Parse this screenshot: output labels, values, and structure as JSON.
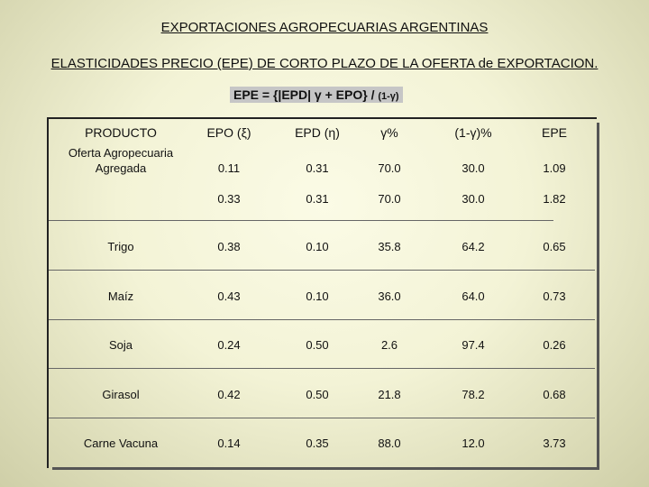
{
  "title": "EXPORTACIONES AGROPECUARIAS ARGENTINAS",
  "subtitle": "ELASTICIDADES PRECIO (EPE) DE CORTO PLAZO DE LA OFERTA de EXPORTACION.",
  "formula": {
    "main": "EPE = {|EPD| γ + EPO} / ",
    "small": "(1-γ)"
  },
  "table": {
    "headers": [
      "PRODUCTO",
      "EPO (ξ)",
      "EPD (η)",
      "γ%",
      "(1-γ)%",
      "EPE"
    ],
    "rows": [
      {
        "product": "Oferta Agropecuaria Agregada",
        "epo": "0.11",
        "epd": "0.31",
        "gamma": "70.0",
        "one_minus_gamma": "30.0",
        "epe": "1.09"
      },
      {
        "product": "",
        "epo": "0.33",
        "epd": "0.31",
        "gamma": "70.0",
        "one_minus_gamma": "30.0",
        "epe": "1.82"
      },
      {
        "product": "Trigo",
        "epo": "0.38",
        "epd": "0.10",
        "gamma": "35.8",
        "one_minus_gamma": "64.2",
        "epe": "0.65"
      },
      {
        "product": "Maíz",
        "epo": "0.43",
        "epd": "0.10",
        "gamma": "36.0",
        "one_minus_gamma": "64.0",
        "epe": "0.73"
      },
      {
        "product": "Soja",
        "epo": "0.24",
        "epd": "0.50",
        "gamma": "2.6",
        "one_minus_gamma": "97.4",
        "epe": "0.26"
      },
      {
        "product": "Girasol",
        "epo": "0.42",
        "epd": "0.50",
        "gamma": "21.8",
        "one_minus_gamma": "78.2",
        "epe": "0.68"
      },
      {
        "product": "Carne Vacuna",
        "epo": "0.14",
        "epd": "0.35",
        "gamma": "88.0",
        "one_minus_gamma": "12.0",
        "epe": "3.73"
      }
    ]
  }
}
